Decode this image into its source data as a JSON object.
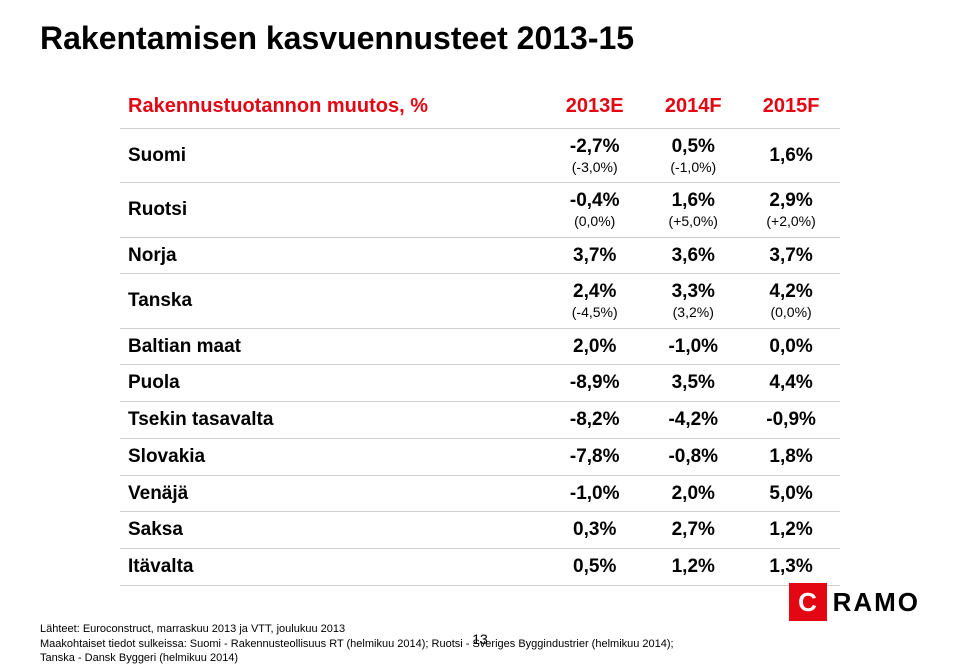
{
  "title": "Rakentamisen kasvuennusteet 2013-15",
  "columns": [
    "Rakennustuotannon muutos, %",
    "2013E",
    "2014F",
    "2015F"
  ],
  "rows": [
    {
      "label": "Suomi",
      "c1": "-2,7%",
      "s1": "(-3,0%)",
      "c2": "0,5%",
      "s2": "(-1,0%)",
      "c3": "1,6%",
      "s3": ""
    },
    {
      "label": "Ruotsi",
      "c1": "-0,4%",
      "s1": "(0,0%)",
      "c2": "1,6%",
      "s2": "(+5,0%)",
      "c3": "2,9%",
      "s3": "(+2,0%)"
    },
    {
      "label": "Norja",
      "c1": "3,7%",
      "s1": "",
      "c2": "3,6%",
      "s2": "",
      "c3": "3,7%",
      "s3": ""
    },
    {
      "label": "Tanska",
      "c1": "2,4%",
      "s1": "(-4,5%)",
      "c2": "3,3%",
      "s2": "(3,2%)",
      "c3": "4,2%",
      "s3": "(0,0%)"
    },
    {
      "label": "Baltian maat",
      "c1": "2,0%",
      "s1": "",
      "c2": "-1,0%",
      "s2": "",
      "c3": "0,0%",
      "s3": ""
    },
    {
      "label": "Puola",
      "c1": "-8,9%",
      "s1": "",
      "c2": "3,5%",
      "s2": "",
      "c3": "4,4%",
      "s3": ""
    },
    {
      "label": "Tsekin tasavalta",
      "c1": "-8,2%",
      "s1": "",
      "c2": "-4,2%",
      "s2": "",
      "c3": "-0,9%",
      "s3": ""
    },
    {
      "label": "Slovakia",
      "c1": "-7,8%",
      "s1": "",
      "c2": "-0,8%",
      "s2": "",
      "c3": "1,8%",
      "s3": ""
    },
    {
      "label": "Venäjä",
      "c1": "-1,0%",
      "s1": "",
      "c2": "2,0%",
      "s2": "",
      "c3": "5,0%",
      "s3": ""
    },
    {
      "label": "Saksa",
      "c1": "0,3%",
      "s1": "",
      "c2": "2,7%",
      "s2": "",
      "c3": "1,2%",
      "s3": ""
    },
    {
      "label": "Itävalta",
      "c1": "0,5%",
      "s1": "",
      "c2": "1,2%",
      "s2": "",
      "c3": "1,3%",
      "s3": ""
    }
  ],
  "footer": {
    "line1": "Lähteet: Euroconstruct, marraskuu 2013 ja VTT, joulukuu 2013",
    "line2": "Maakohtaiset tiedot sulkeissa: Suomi - Rakennusteollisuus RT (helmikuu 2014); Ruotsi - Sveriges Byggindustrier (helmikuu 2014);",
    "line3": "Tanska - Dansk Byggeri (helmikuu 2014)"
  },
  "logo": {
    "mark": "C",
    "text": "RAMO"
  },
  "pageNumber": "13",
  "colors": {
    "accent": "#e30613",
    "border": "#cfcfcf",
    "text": "#000000"
  }
}
